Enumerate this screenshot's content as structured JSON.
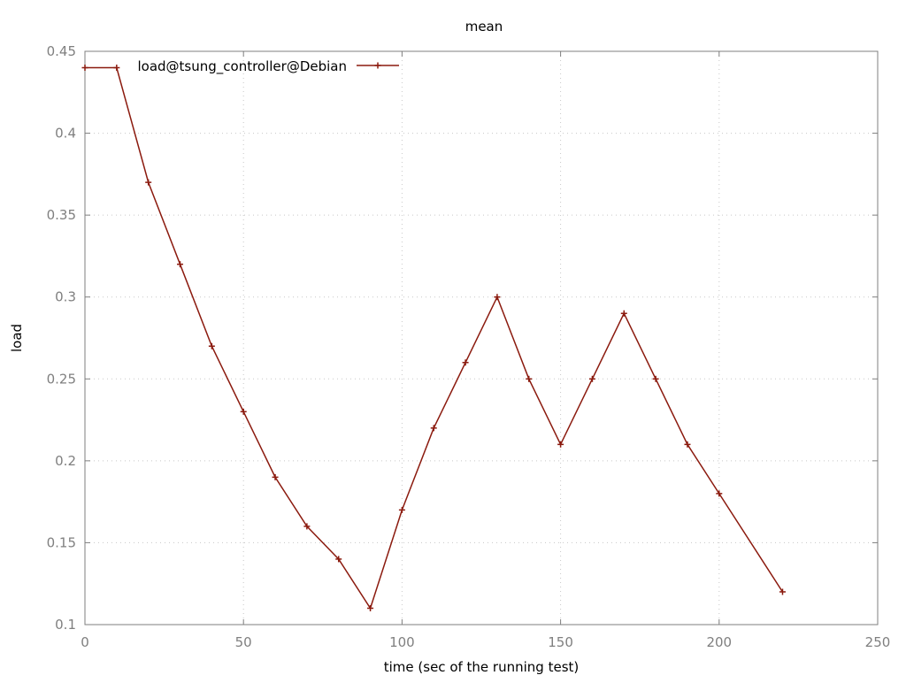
{
  "chart_data": {
    "type": "line",
    "title": "mean",
    "xlabel": "time (sec of the running test)",
    "ylabel": "load",
    "xlim": [
      0,
      250
    ],
    "ylim": [
      0.1,
      0.45
    ],
    "x_ticks": [
      0,
      50,
      100,
      150,
      200,
      250
    ],
    "x_tick_labels": [
      "0",
      "50",
      "100",
      "150",
      "200",
      "250"
    ],
    "y_ticks": [
      0.1,
      0.15,
      0.2,
      0.25,
      0.3,
      0.35,
      0.4,
      0.45
    ],
    "y_tick_labels": [
      "0.1",
      "0.15",
      "0.2",
      "0.25",
      "0.3",
      "0.35",
      "0.4",
      "0.45"
    ],
    "grid": true,
    "legend_position": "top-left",
    "series": [
      {
        "name": "load@tsung_controller@Debian",
        "color": "#8b1a0e",
        "marker": "plus",
        "x": [
          0,
          10,
          20,
          30,
          40,
          50,
          60,
          70,
          80,
          90,
          100,
          110,
          120,
          130,
          140,
          150,
          160,
          170,
          180,
          190,
          200,
          220
        ],
        "values": [
          0.44,
          0.44,
          0.37,
          0.32,
          0.27,
          0.23,
          0.19,
          0.16,
          0.14,
          0.11,
          0.17,
          0.22,
          0.26,
          0.3,
          0.25,
          0.21,
          0.25,
          0.29,
          0.25,
          0.21,
          0.18,
          0.12
        ]
      }
    ]
  }
}
